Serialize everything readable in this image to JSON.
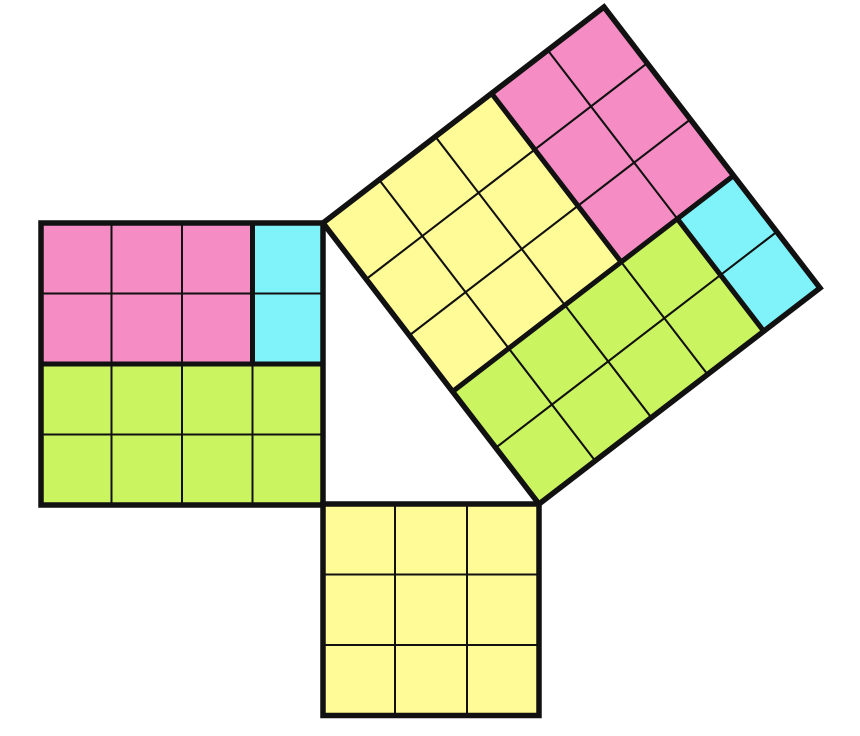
{
  "colors": {
    "pink": "#F58CC4",
    "cyan": "#80F3FA",
    "green": "#CBF560",
    "yellow": "#FFFB96",
    "line": "#111111",
    "background": "#FFFFFF"
  },
  "squares": [
    {
      "name": "square-on-vertical-leg",
      "side": 4,
      "regions": [
        {
          "name": "pink-region",
          "color": "pink",
          "area": 6
        },
        {
          "name": "cyan-region",
          "color": "cyan",
          "area": 2
        },
        {
          "name": "green-region",
          "color": "green",
          "area": 8
        }
      ]
    },
    {
      "name": "square-on-horizontal-leg",
      "side": 3,
      "regions": [
        {
          "name": "yellow-region",
          "color": "yellow",
          "area": 9
        }
      ]
    },
    {
      "name": "square-on-hypotenuse",
      "side": 5,
      "regions": [
        {
          "name": "yellow-region",
          "color": "yellow",
          "area": 9
        },
        {
          "name": "pink-region",
          "color": "pink",
          "area": 6
        },
        {
          "name": "green-region",
          "color": "green",
          "area": 8
        },
        {
          "name": "cyan-region",
          "color": "cyan",
          "area": 2
        }
      ]
    }
  ]
}
